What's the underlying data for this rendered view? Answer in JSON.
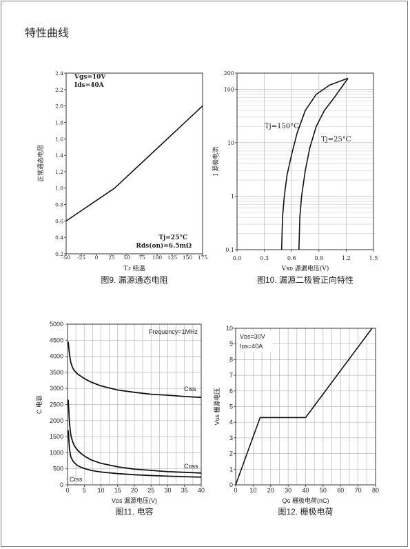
{
  "page": {
    "title": "特性曲线"
  },
  "chart_data": [
    {
      "type": "line",
      "caption": "图9. 漏源通态电阻",
      "xlabel": "Tᴊ 结温",
      "ylabel": "正常通态电阻",
      "xlim": [
        -50,
        175
      ],
      "ylim": [
        0.2,
        2.4
      ],
      "x_ticks": [
        "-50",
        "-25",
        "0",
        "25",
        "50",
        "75",
        "100",
        "125",
        "150",
        "175"
      ],
      "y_ticks": [
        "0.2",
        "0.4",
        "0.6",
        "0.8",
        "1.0",
        "1.2",
        "1.4",
        "1.6",
        "1.8",
        "2.0",
        "2.2",
        "2.4"
      ],
      "grid": false,
      "annotations": [
        "Vgs=10V",
        "Ids=40A",
        "Tj=25°C",
        "Rds(on)=6.5mΩ"
      ],
      "series": [
        {
          "x": [
            -50,
            30,
            175
          ],
          "y": [
            0.6,
            1.0,
            2.0
          ]
        }
      ]
    },
    {
      "type": "line",
      "caption": "图10. 漏源二极管正向特性",
      "xlabel": "Vsᴅ 源漏电压(V)",
      "ylabel": "I 源极电流",
      "xlim": [
        0,
        1.5
      ],
      "ylim": [
        0.1,
        200
      ],
      "yscale": "log",
      "x_ticks": [
        "0.0",
        "0.3",
        "0.6",
        "0.9",
        "1.2",
        "1.5"
      ],
      "y_ticks": [
        "0.1",
        "1",
        "10",
        "100",
        "200"
      ],
      "grid": true,
      "series": [
        {
          "name": "Tj=150°C",
          "x": [
            0.49,
            0.5,
            0.52,
            0.55,
            0.6,
            0.66,
            0.75,
            0.87,
            1.02,
            1.22
          ],
          "y": [
            0.1,
            0.4,
            1,
            2.5,
            6,
            15,
            40,
            80,
            120,
            160
          ]
        },
        {
          "name": "Tj=25°C",
          "x": [
            0.68,
            0.69,
            0.71,
            0.75,
            0.8,
            0.87,
            0.96,
            1.07,
            1.22
          ],
          "y": [
            0.1,
            0.4,
            1,
            3,
            8,
            20,
            40,
            70,
            160
          ]
        }
      ]
    },
    {
      "type": "line",
      "caption": "图11. 电容",
      "xlabel": "Vᴅs 漏源电压(V)",
      "ylabel": "C 电容",
      "xlim": [
        0,
        40
      ],
      "ylim": [
        0,
        5000
      ],
      "x_ticks": [
        "0",
        "5",
        "10",
        "15",
        "20",
        "25",
        "30",
        "35",
        "40"
      ],
      "y_ticks": [
        "0",
        "500",
        "1000",
        "1500",
        "2000",
        "2500",
        "3000",
        "3500",
        "4000",
        "4500",
        "5000"
      ],
      "grid": true,
      "annotations": [
        "Frequency=1MHz"
      ],
      "series": [
        {
          "name": "Ciss",
          "x": [
            0.2,
            0.6,
            1,
            1.5,
            2,
            3,
            4,
            5,
            7,
            10,
            15,
            20,
            25,
            30,
            35,
            40
          ],
          "y": [
            4450,
            4050,
            3800,
            3650,
            3560,
            3450,
            3380,
            3310,
            3200,
            3080,
            2950,
            2880,
            2820,
            2790,
            2750,
            2720
          ]
        },
        {
          "name": "Coss",
          "x": [
            0.2,
            0.6,
            1,
            1.5,
            2,
            3,
            4,
            5,
            7,
            10,
            15,
            20,
            25,
            30,
            35,
            40
          ],
          "y": [
            2650,
            1900,
            1550,
            1350,
            1220,
            1080,
            980,
            900,
            780,
            670,
            560,
            490,
            450,
            410,
            390,
            370
          ]
        },
        {
          "name": "Crss",
          "x": [
            0.2,
            0.6,
            1,
            1.5,
            2,
            3,
            4,
            5,
            7,
            10,
            15,
            20,
            25,
            30,
            35,
            40
          ],
          "y": [
            1700,
            1100,
            870,
            760,
            690,
            600,
            550,
            510,
            450,
            400,
            350,
            315,
            290,
            270,
            255,
            240
          ]
        }
      ]
    },
    {
      "type": "line",
      "caption": "图12. 栅极电荷",
      "xlabel": "Qɢ 栅极电荷(nC)",
      "ylabel": "Vɢs 栅源电压",
      "xlim": [
        0,
        80
      ],
      "ylim": [
        0,
        10
      ],
      "x_ticks": [
        "0",
        "10",
        "20",
        "30",
        "40",
        "50",
        "60",
        "70",
        "80"
      ],
      "y_ticks": [
        "0",
        "1",
        "2",
        "3",
        "4",
        "5",
        "6",
        "7",
        "8",
        "9",
        "10"
      ],
      "grid": true,
      "annotations": [
        "Vᴅs=30V",
        "Iᴅs=40A"
      ],
      "series": [
        {
          "x": [
            0,
            14,
            40,
            78
          ],
          "y": [
            0,
            4.3,
            4.3,
            10
          ]
        }
      ]
    }
  ],
  "colors": {
    "line": "#111111",
    "grid_major": "#b8b8b8",
    "grid_minor": "#d6d6d6",
    "axis": "#333333",
    "text": "#222222"
  }
}
